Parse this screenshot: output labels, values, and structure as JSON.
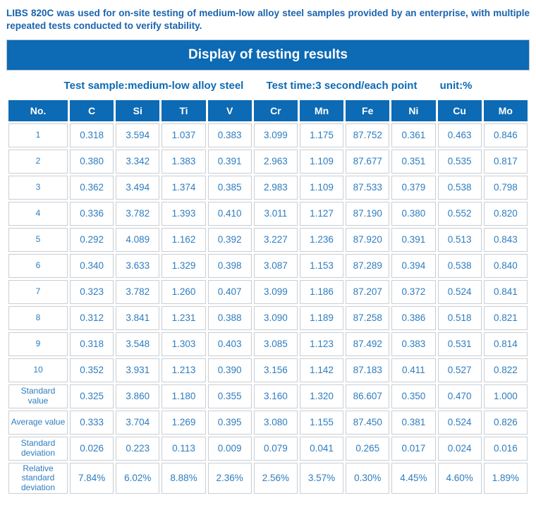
{
  "intro_text": "LIBS 820C was used for on-site testing of medium-low alloy steel samples provided by an enterprise, with multiple repeated tests conducted to verify stability.",
  "title": "Display of testing results",
  "subtitle": {
    "sample": "Test sample:medium-low alloy steel",
    "time": "Test time:3 second/each point",
    "unit": "unit:%"
  },
  "colors": {
    "primary_blue": "#0d6ab4",
    "intro_text_blue": "#1a63ae",
    "data_text_blue": "#2e7dbf",
    "cell_border_gray": "#c9ced4",
    "header_text": "#ffffff"
  },
  "table": {
    "columns": [
      "No.",
      "C",
      "Si",
      "Ti",
      "V",
      "Cr",
      "Mn",
      "Fe",
      "Ni",
      "Cu",
      "Mo"
    ],
    "rows": [
      {
        "label": "1",
        "values": [
          "0.318",
          "3.594",
          "1.037",
          "0.383",
          "3.099",
          "1.175",
          "87.752",
          "0.361",
          "0.463",
          "0.846"
        ]
      },
      {
        "label": "2",
        "values": [
          "0.380",
          "3.342",
          "1.383",
          "0.391",
          "2.963",
          "1.109",
          "87.677",
          "0.351",
          "0.535",
          "0.817"
        ]
      },
      {
        "label": "3",
        "values": [
          "0.362",
          "3.494",
          "1.374",
          "0.385",
          "2.983",
          "1.109",
          "87.533",
          "0.379",
          "0.538",
          "0.798"
        ]
      },
      {
        "label": "4",
        "values": [
          "0.336",
          "3.782",
          "1.393",
          "0.410",
          "3.011",
          "1.127",
          "87.190",
          "0.380",
          "0.552",
          "0.820"
        ]
      },
      {
        "label": "5",
        "values": [
          "0.292",
          "4.089",
          "1.162",
          "0.392",
          "3.227",
          "1.236",
          "87.920",
          "0.391",
          "0.513",
          "0.843"
        ]
      },
      {
        "label": "6",
        "values": [
          "0.340",
          "3.633",
          "1.329",
          "0.398",
          "3.087",
          "1.153",
          "87.289",
          "0.394",
          "0.538",
          "0.840"
        ]
      },
      {
        "label": "7",
        "values": [
          "0.323",
          "3.782",
          "1.260",
          "0.407",
          "3.099",
          "1.186",
          "87.207",
          "0.372",
          "0.524",
          "0.841"
        ]
      },
      {
        "label": "8",
        "values": [
          "0.312",
          "3.841",
          "1.231",
          "0.388",
          "3.090",
          "1.189",
          "87.258",
          "0.386",
          "0.518",
          "0.821"
        ]
      },
      {
        "label": "9",
        "values": [
          "0.318",
          "3.548",
          "1.303",
          "0.403",
          "3.085",
          "1.123",
          "87.492",
          "0.383",
          "0.531",
          "0.814"
        ]
      },
      {
        "label": "10",
        "values": [
          "0.352",
          "3.931",
          "1.213",
          "0.390",
          "3.156",
          "1.142",
          "87.183",
          "0.411",
          "0.527",
          "0.822"
        ]
      },
      {
        "label": "Standard value",
        "values": [
          "0.325",
          "3.860",
          "1.180",
          "0.355",
          "3.160",
          "1.320",
          "86.607",
          "0.350",
          "0.470",
          "1.000"
        ]
      },
      {
        "label": "Average value",
        "values": [
          "0.333",
          "3.704",
          "1.269",
          "0.395",
          "3.080",
          "1.155",
          "87.450",
          "0.381",
          "0.524",
          "0.826"
        ]
      },
      {
        "label": "Standard deviation",
        "values": [
          "0.026",
          "0.223",
          "0.113",
          "0.009",
          "0.079",
          "0.041",
          "0.265",
          "0.017",
          "0.024",
          "0.016"
        ]
      },
      {
        "label": "Relative standard deviation",
        "values": [
          "7.84%",
          "6.02%",
          "8.88%",
          "2.36%",
          "2.56%",
          "3.57%",
          "0.30%",
          "4.45%",
          "4.60%",
          "1.89%"
        ]
      }
    ]
  }
}
